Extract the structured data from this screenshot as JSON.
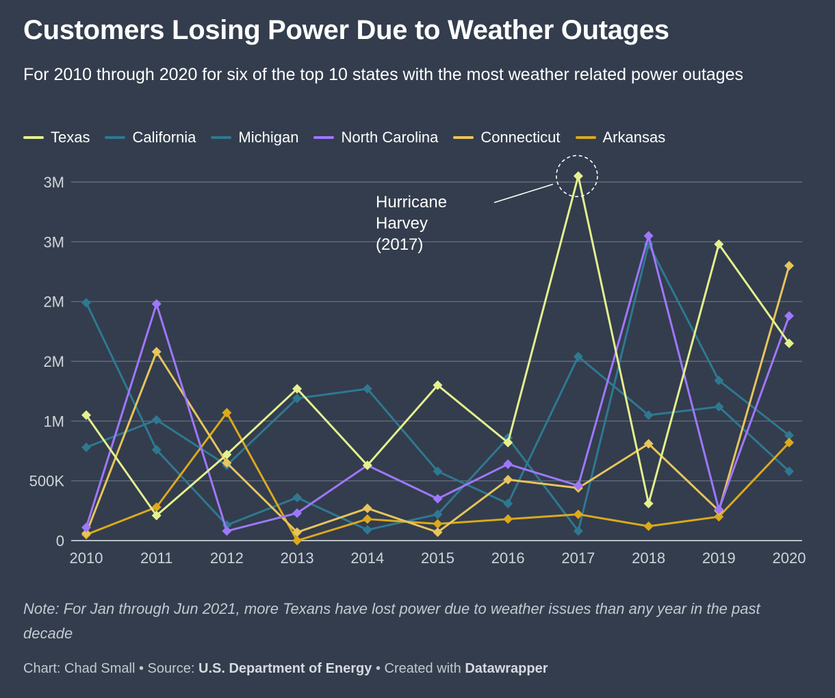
{
  "header": {
    "title": "Customers Losing Power Due to Weather Outages",
    "subtitle": "For 2010 through 2020 for six of the top 10 states with the most weather related power outages"
  },
  "footer": {
    "note": "Note: For Jan through Jun 2021, more Texans have lost power due to weather issues than any year in the past decade",
    "credit_prefix": "Chart: Chad Small • Source: ",
    "source_name": "U.S. Department of Energy",
    "created_prefix": " • Created with ",
    "tool_name": "Datawrapper"
  },
  "chart_data": {
    "type": "line",
    "title": "Customers Losing Power Due to Weather Outages",
    "subtitle": "For 2010 through 2020 for six of the top 10 states with the most weather related power outages",
    "x": [
      "2010",
      "2011",
      "2012",
      "2013",
      "2014",
      "2015",
      "2016",
      "2017",
      "2018",
      "2019",
      "2020"
    ],
    "ylim": [
      0,
      3000000
    ],
    "yticks": [
      {
        "value": 0,
        "label": "0"
      },
      {
        "value": 500000,
        "label": "500K"
      },
      {
        "value": 1000000,
        "label": "1M"
      },
      {
        "value": 1500000,
        "label": "2M"
      },
      {
        "value": 2000000,
        "label": "2M"
      },
      {
        "value": 2500000,
        "label": "3M"
      },
      {
        "value": 3000000,
        "label": "3M"
      }
    ],
    "grid": true,
    "legend_position": "top-left",
    "annotation": {
      "text_lines": [
        "Hurricane",
        "Harvey",
        "(2017)"
      ],
      "x": "2017",
      "series": "Texas"
    },
    "series": [
      {
        "name": "Texas",
        "color": "#e5f08f",
        "values": [
          1050000,
          210000,
          720000,
          1270000,
          630000,
          1300000,
          820000,
          3050000,
          310000,
          2480000,
          1650000
        ]
      },
      {
        "name": "California",
        "color": "#2f7891",
        "values": [
          780000,
          1010000,
          630000,
          1190000,
          1270000,
          580000,
          310000,
          1540000,
          1050000,
          1120000,
          580000
        ]
      },
      {
        "name": "Michigan",
        "color": "#2f7891",
        "values": [
          1990000,
          760000,
          130000,
          360000,
          90000,
          220000,
          860000,
          80000,
          2480000,
          1340000,
          880000
        ]
      },
      {
        "name": "North Carolina",
        "color": "#9f77ff",
        "values": [
          110000,
          1980000,
          80000,
          230000,
          630000,
          350000,
          640000,
          460000,
          2550000,
          260000,
          1880000
        ]
      },
      {
        "name": "Connecticut",
        "color": "#e8c45c",
        "values": [
          60000,
          1580000,
          650000,
          70000,
          270000,
          70000,
          510000,
          440000,
          810000,
          250000,
          2300000
        ]
      },
      {
        "name": "Arkansas",
        "color": "#dca91c",
        "values": [
          50000,
          280000,
          1070000,
          0,
          180000,
          140000,
          180000,
          220000,
          120000,
          200000,
          820000
        ]
      }
    ]
  }
}
